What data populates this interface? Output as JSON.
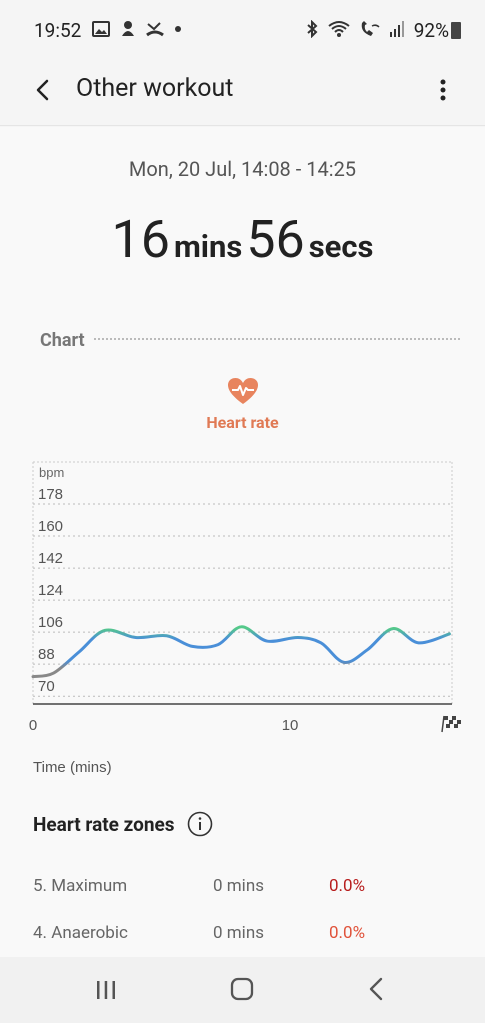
{
  "status_bar": {
    "time": "19:52",
    "battery_text": "92%",
    "left_icons": [
      "gallery-icon",
      "notification-icon",
      "missed-call-icon",
      "dot-icon"
    ],
    "right_icons": [
      "bluetooth-icon",
      "wifi-icon",
      "wifi-calling-icon",
      "signal-icon",
      "battery-icon"
    ]
  },
  "app_bar": {
    "title": "Other workout"
  },
  "workout": {
    "date_range": "Mon, 20 Jul, 14:08 - 14:25",
    "duration_mins": "16",
    "mins_label": "mins",
    "duration_secs": "56",
    "secs_label": "secs"
  },
  "chart_section": {
    "label": "Chart",
    "metric_label": "Heart rate",
    "metric_color": "#e07a55"
  },
  "chart_data": {
    "type": "line",
    "ylabel": "bpm",
    "xlabel": "Time (mins)",
    "yticks": [
      178,
      160,
      142,
      124,
      106,
      88,
      70
    ],
    "xticks": [
      0,
      10
    ],
    "ylim": [
      60,
      196
    ],
    "xlim": [
      0,
      16.3
    ],
    "series": [
      {
        "x": [
          0,
          0.8,
          1.8,
          2.8,
          4.0,
          5.2,
          6.2,
          7.2,
          8.1,
          9.1,
          10.3,
          11.2,
          12.1,
          13.0,
          14.0,
          15.0,
          16.2
        ],
        "values": [
          81,
          83,
          95,
          107,
          103,
          104,
          98,
          99,
          109,
          101,
          103,
          100,
          89,
          96,
          108,
          100,
          105
        ]
      }
    ],
    "grid": true,
    "end_marker": "finish-flag-icon"
  },
  "heart_rate_zones": {
    "title": "Heart rate zones",
    "zones": [
      {
        "name": "5. Maximum",
        "time": "0 mins",
        "percent": "0.0%",
        "color": "#b71c1c"
      },
      {
        "name": "4. Anaerobic",
        "time": "0 mins",
        "percent": "0.0%",
        "color": "#e0523a"
      }
    ]
  },
  "nav_bar": {
    "items": [
      "recent-apps-icon",
      "home-icon",
      "back-icon"
    ]
  }
}
